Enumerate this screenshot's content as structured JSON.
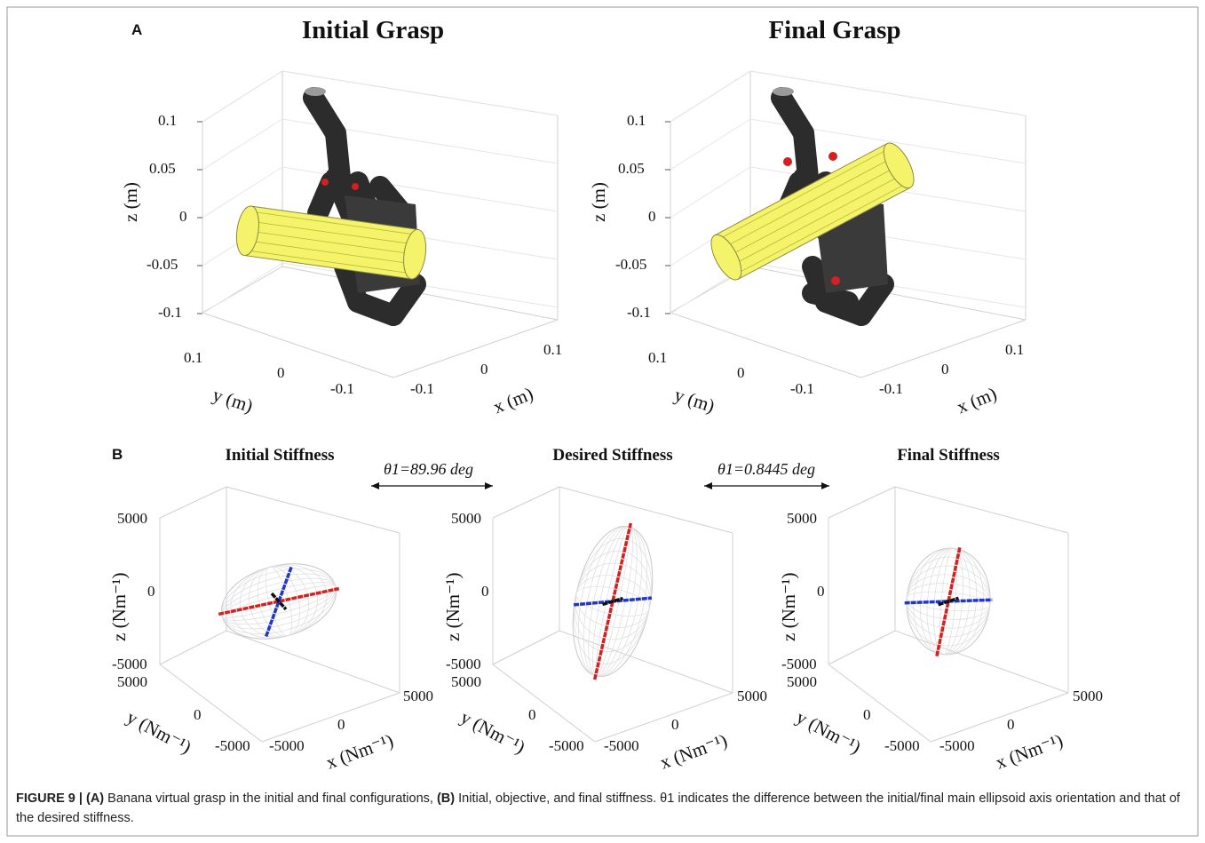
{
  "figure": {
    "panel_a_letter": "A",
    "panel_b_letter": "B",
    "grasp_plots": [
      {
        "title": "Initial Grasp",
        "z_label": "z (m)",
        "y_label": "y (m)",
        "x_label": "x (m)",
        "z_ticks": [
          "0.1",
          "0.05",
          "0",
          "-0.05",
          "-0.1"
        ],
        "y_ticks": [
          "0.1",
          "0",
          "-0.1"
        ],
        "x_ticks": [
          "-0.1",
          "0",
          "0.1"
        ]
      },
      {
        "title": "Final Grasp",
        "z_label": "z (m)",
        "y_label": "y (m)",
        "x_label": "x (m)",
        "z_ticks": [
          "0.1",
          "0.05",
          "0",
          "-0.05",
          "-0.1"
        ],
        "y_ticks": [
          "0.1",
          "0",
          "-0.1"
        ],
        "x_ticks": [
          "-0.1",
          "0",
          "0.1"
        ]
      }
    ],
    "stiffness_plots": [
      {
        "title": "Initial Stiffness",
        "z_label": "z (Nm⁻¹)",
        "y_label": "y (Nm⁻¹)",
        "x_label": "x (Nm⁻¹)",
        "z_ticks": [
          "5000",
          "0",
          "-5000"
        ],
        "y_ticks": [
          "5000",
          "0",
          "-5000"
        ],
        "x_ticks": [
          "-5000",
          "0",
          "5000"
        ]
      },
      {
        "title": "Desired Stiffness",
        "z_label": "z (Nm⁻¹)",
        "y_label": "y (Nm⁻¹)",
        "x_label": "x (Nm⁻¹)",
        "z_ticks": [
          "5000",
          "0",
          "-5000"
        ],
        "y_ticks": [
          "5000",
          "0",
          "-5000"
        ],
        "x_ticks": [
          "-5000",
          "0",
          "5000"
        ]
      },
      {
        "title": "Final Stiffness",
        "z_label": "z (Nm⁻¹)",
        "y_label": "y (Nm⁻¹)",
        "x_label": "x (Nm⁻¹)",
        "z_ticks": [
          "5000",
          "0",
          "-5000"
        ],
        "y_ticks": [
          "5000",
          "0",
          "-5000"
        ],
        "x_ticks": [
          "-5000",
          "0",
          "5000"
        ]
      }
    ],
    "angle_annotations": [
      "θ1=89.96 deg",
      "θ1=0.8445 deg"
    ],
    "colors": {
      "banana": "#f4f36a",
      "hand": "#2c2c2c",
      "contact": "#d42020",
      "ellipsoid_mesh": "#c8c8c8",
      "main_axis": "#d42020",
      "second_axis": "#2236c8",
      "third_axis": "#111111",
      "frame_border": "#9a9a9a"
    },
    "caption": {
      "label": "FIGURE 9 |",
      "part_a": "(A)",
      "text_a": "Banana virtual grasp in the initial and final configurations,",
      "part_b": "(B)",
      "text_b": "Initial, objective, and final stiffness. θ1 indicates the difference between the initial/final main ellipsoid axis orientation and that of the desired stiffness."
    }
  }
}
